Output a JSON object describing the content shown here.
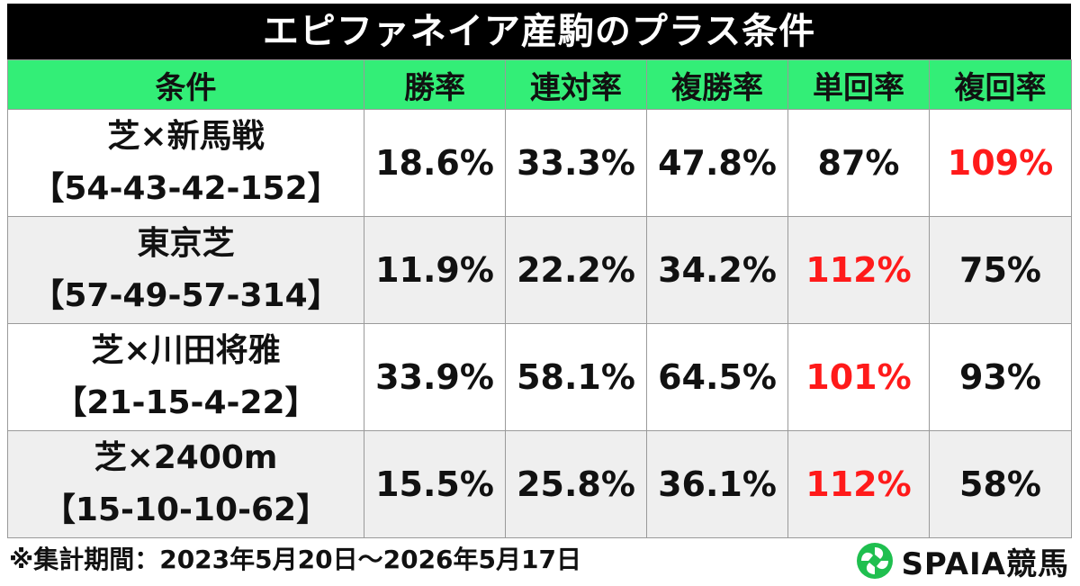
{
  "chart_data": {
    "type": "table",
    "title": "エピファネイア産駒のプラス条件",
    "columns": [
      "条件",
      "勝率",
      "連対率",
      "複勝率",
      "単回率",
      "複回率"
    ],
    "rows": [
      {
        "condition": "芝×新馬戦",
        "record": "【54-43-42-152】",
        "win_rate": "18.6%",
        "place2_rate": "33.3%",
        "show_rate": "47.8%",
        "win_return": "87%",
        "show_return": "109%",
        "win_return_hot": false,
        "show_return_hot": true
      },
      {
        "condition": "東京芝",
        "record": "【57-49-57-314】",
        "win_rate": "11.9%",
        "place2_rate": "22.2%",
        "show_rate": "34.2%",
        "win_return": "112%",
        "show_return": "75%",
        "win_return_hot": true,
        "show_return_hot": false
      },
      {
        "condition": "芝×川田将雅",
        "record": "【21-15-4-22】",
        "win_rate": "33.9%",
        "place2_rate": "58.1%",
        "show_rate": "64.5%",
        "win_return": "101%",
        "show_return": "93%",
        "win_return_hot": true,
        "show_return_hot": false
      },
      {
        "condition": "芝×2400m",
        "record": "【15-10-10-62】",
        "win_rate": "15.5%",
        "place2_rate": "25.8%",
        "show_rate": "36.1%",
        "win_return": "112%",
        "show_return": "58%",
        "win_return_hot": true,
        "show_return_hot": false
      }
    ],
    "header_color": "#33ee77",
    "highlight_color": "#ff1a1a"
  },
  "footer": {
    "note": "※集計期間：2023年5月20日～2026年5月17日",
    "brand": "SPAIA競馬"
  }
}
